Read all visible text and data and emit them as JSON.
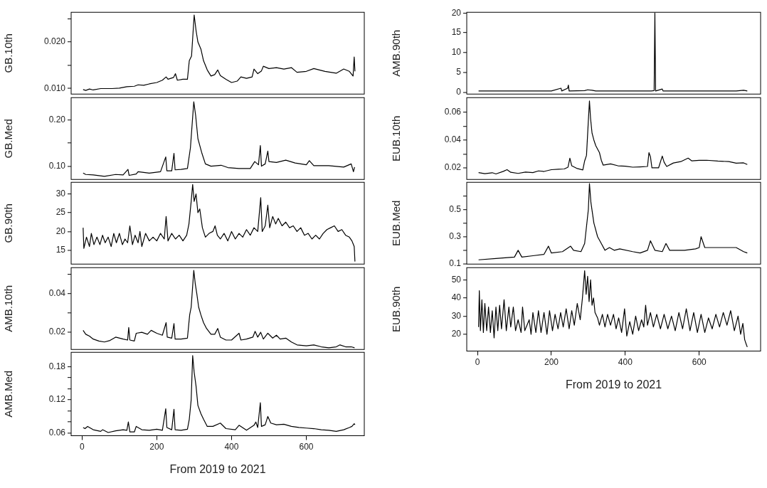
{
  "chart_data": [
    {
      "type": "line",
      "ylabel": "GB.10th",
      "color": "#000000",
      "xlim": [
        -29,
        755
      ],
      "ylim": [
        0.0088,
        0.0264
      ],
      "xticks": [
        0,
        200,
        400,
        600
      ],
      "yticks": [
        {
          "value": 0.01,
          "label": "0.010"
        },
        {
          "value": 0.015,
          "label": null
        },
        {
          "value": 0.02,
          "label": "0.020"
        },
        {
          "value": 0.025,
          "label": null
        }
      ],
      "tick_labels": "y",
      "x": [
        3,
        10,
        20,
        30,
        50,
        80,
        100,
        120,
        140,
        150,
        165,
        180,
        200,
        215,
        225,
        230,
        245,
        250,
        255,
        270,
        282,
        287,
        293,
        300,
        305,
        310,
        318,
        325,
        335,
        345,
        355,
        363,
        370,
        385,
        400,
        415,
        425,
        440,
        455,
        460,
        470,
        480,
        485,
        500,
        520,
        540,
        560,
        575,
        600,
        620,
        650,
        680,
        700,
        715,
        725,
        728,
        730
      ],
      "values": [
        0.0098,
        0.0096,
        0.0099,
        0.0097,
        0.01,
        0.01,
        0.0101,
        0.0104,
        0.0105,
        0.0108,
        0.0107,
        0.011,
        0.0113,
        0.0118,
        0.0125,
        0.012,
        0.0124,
        0.0132,
        0.0118,
        0.012,
        0.012,
        0.016,
        0.017,
        0.0258,
        0.0225,
        0.02,
        0.0185,
        0.016,
        0.014,
        0.0127,
        0.013,
        0.014,
        0.0128,
        0.012,
        0.0113,
        0.0116,
        0.0125,
        0.0122,
        0.0125,
        0.0142,
        0.0132,
        0.0138,
        0.0148,
        0.0143,
        0.0145,
        0.0142,
        0.0145,
        0.0135,
        0.0137,
        0.0143,
        0.0137,
        0.0133,
        0.0142,
        0.0137,
        0.0127,
        0.0168,
        0.0137
      ]
    },
    {
      "type": "line",
      "ylabel": "GB.Med",
      "color": "#000000",
      "xlim": [
        -29,
        755
      ],
      "ylim": [
        0.071,
        0.249
      ],
      "xticks": [
        0,
        200,
        400,
        600
      ],
      "yticks": [
        {
          "value": 0.1,
          "label": "0.10"
        },
        {
          "value": 0.15,
          "label": null
        },
        {
          "value": 0.2,
          "label": "0.20"
        }
      ],
      "tick_labels": "y",
      "x": [
        3,
        10,
        30,
        60,
        90,
        110,
        123,
        126,
        145,
        150,
        180,
        210,
        224,
        227,
        240,
        246,
        249,
        265,
        282,
        290,
        299,
        304,
        310,
        320,
        330,
        345,
        372,
        390,
        420,
        450,
        462,
        472,
        477,
        480,
        490,
        497,
        500,
        520,
        545,
        570,
        600,
        608,
        620,
        660,
        700,
        720,
        726,
        729
      ],
      "values": [
        0.085,
        0.082,
        0.081,
        0.078,
        0.082,
        0.081,
        0.093,
        0.08,
        0.083,
        0.088,
        0.085,
        0.088,
        0.12,
        0.09,
        0.09,
        0.128,
        0.092,
        0.093,
        0.095,
        0.14,
        0.24,
        0.21,
        0.16,
        0.13,
        0.105,
        0.1,
        0.102,
        0.097,
        0.095,
        0.095,
        0.11,
        0.103,
        0.145,
        0.1,
        0.105,
        0.133,
        0.11,
        0.108,
        0.113,
        0.107,
        0.103,
        0.112,
        0.101,
        0.101,
        0.098,
        0.105,
        0.088,
        0.098
      ]
    },
    {
      "type": "line",
      "ylabel": "GB.90th",
      "color": "#000000",
      "xlim": [
        -29,
        755
      ],
      "ylim": [
        11.3,
        33.1
      ],
      "xticks": [
        0,
        200,
        400,
        600
      ],
      "yticks": [
        15,
        20,
        25,
        30
      ],
      "tick_labels": "y",
      "x": [
        3,
        5,
        12,
        20,
        25,
        32,
        40,
        48,
        55,
        62,
        70,
        78,
        85,
        92,
        100,
        108,
        115,
        122,
        128,
        135,
        142,
        150,
        155,
        160,
        170,
        180,
        190,
        200,
        210,
        220,
        225,
        230,
        240,
        250,
        260,
        270,
        280,
        286,
        292,
        296,
        300,
        305,
        310,
        315,
        322,
        330,
        340,
        350,
        356,
        362,
        370,
        380,
        390,
        400,
        410,
        420,
        430,
        440,
        450,
        460,
        470,
        478,
        482,
        490,
        497,
        502,
        510,
        518,
        525,
        535,
        545,
        555,
        565,
        575,
        585,
        595,
        605,
        615,
        625,
        635,
        645,
        655,
        665,
        675,
        685,
        695,
        705,
        715,
        722,
        728,
        730
      ],
      "values": [
        21,
        15.5,
        18.5,
        16,
        19.5,
        16.5,
        18.5,
        16.5,
        19,
        17,
        18.5,
        16,
        19.5,
        17,
        19.5,
        16.5,
        18,
        17,
        21.5,
        16.5,
        19,
        17,
        20,
        16,
        19.5,
        17.5,
        18.5,
        17.5,
        19.5,
        18,
        24,
        17.5,
        19.5,
        18,
        19,
        17.5,
        19,
        22,
        28,
        32.5,
        28,
        30,
        25,
        26,
        21,
        18.5,
        19.5,
        20,
        21.5,
        19,
        18,
        19.5,
        17.5,
        20,
        18,
        19.5,
        18.5,
        20.5,
        19,
        21,
        20,
        29,
        20,
        21.5,
        27,
        21,
        24,
        22,
        23.5,
        21.5,
        22.5,
        21,
        21.5,
        20,
        21,
        19,
        19.5,
        18,
        19,
        18,
        19.5,
        20.5,
        21,
        21.5,
        20,
        20.5,
        19,
        18.5,
        17.5,
        16,
        12
      ]
    },
    {
      "type": "line",
      "ylabel": "AMB.10th",
      "color": "#000000",
      "xlim": [
        -29,
        755
      ],
      "ylim": [
        0.0111,
        0.0534
      ],
      "xticks": [
        0,
        200,
        400,
        600
      ],
      "yticks": [
        {
          "value": 0.02,
          "label": "0.02"
        },
        {
          "value": 0.03,
          "label": null
        },
        {
          "value": 0.04,
          "label": "0.04"
        },
        {
          "value": 0.05,
          "label": null
        }
      ],
      "tick_labels": "y",
      "x": [
        3,
        10,
        20,
        30,
        45,
        60,
        75,
        90,
        110,
        122,
        125,
        128,
        140,
        145,
        160,
        175,
        185,
        200,
        215,
        225,
        228,
        240,
        246,
        249,
        265,
        282,
        288,
        292,
        299,
        303,
        307,
        312,
        318,
        325,
        333,
        345,
        355,
        363,
        370,
        385,
        400,
        420,
        425,
        440,
        457,
        463,
        470,
        478,
        485,
        497,
        510,
        520,
        530,
        545,
        560,
        575,
        600,
        620,
        640,
        660,
        680,
        690,
        705,
        720,
        729
      ],
      "values": [
        0.021,
        0.019,
        0.018,
        0.0165,
        0.0155,
        0.015,
        0.0158,
        0.0175,
        0.0165,
        0.016,
        0.0225,
        0.016,
        0.0155,
        0.0195,
        0.02,
        0.019,
        0.021,
        0.0195,
        0.0185,
        0.025,
        0.0175,
        0.017,
        0.0245,
        0.0165,
        0.0165,
        0.017,
        0.029,
        0.033,
        0.052,
        0.045,
        0.04,
        0.033,
        0.029,
        0.025,
        0.022,
        0.019,
        0.019,
        0.022,
        0.0175,
        0.016,
        0.016,
        0.0195,
        0.016,
        0.0165,
        0.0175,
        0.0205,
        0.0175,
        0.02,
        0.0165,
        0.0195,
        0.017,
        0.0185,
        0.0165,
        0.017,
        0.015,
        0.0135,
        0.013,
        0.0135,
        0.0125,
        0.012,
        0.0125,
        0.0135,
        0.0125,
        0.0125,
        0.012
      ]
    },
    {
      "type": "line",
      "ylabel": "AMB.Med",
      "xlabel": "From 2019 to 2021",
      "color": "#000000",
      "xlim": [
        -29,
        755
      ],
      "ylim": [
        0.0553,
        0.206
      ],
      "xticks": [
        0,
        200,
        400,
        600
      ],
      "yticks": [
        {
          "value": 0.06,
          "label": "0.06"
        },
        {
          "value": 0.08,
          "label": null
        },
        {
          "value": 0.1,
          "label": null
        },
        {
          "value": 0.12,
          "label": "0.12"
        },
        {
          "value": 0.14,
          "label": null
        },
        {
          "value": 0.16,
          "label": null
        },
        {
          "value": 0.18,
          "label": "0.18"
        }
      ],
      "x": [
        3,
        8,
        15,
        30,
        50,
        55,
        70,
        90,
        110,
        120,
        124,
        128,
        140,
        145,
        160,
        180,
        200,
        215,
        224,
        227,
        240,
        246,
        249,
        265,
        282,
        287,
        292,
        296,
        300,
        305,
        310,
        318,
        325,
        335,
        350,
        370,
        385,
        410,
        420,
        440,
        460,
        465,
        470,
        477,
        480,
        490,
        497,
        505,
        520,
        540,
        560,
        580,
        600,
        620,
        640,
        660,
        680,
        700,
        715,
        722,
        728,
        730
      ],
      "values": [
        0.07,
        0.068,
        0.072,
        0.066,
        0.063,
        0.066,
        0.061,
        0.064,
        0.066,
        0.065,
        0.08,
        0.062,
        0.062,
        0.072,
        0.066,
        0.065,
        0.067,
        0.065,
        0.104,
        0.07,
        0.066,
        0.103,
        0.066,
        0.065,
        0.067,
        0.085,
        0.12,
        0.2,
        0.17,
        0.145,
        0.11,
        0.095,
        0.085,
        0.072,
        0.072,
        0.078,
        0.068,
        0.066,
        0.074,
        0.065,
        0.074,
        0.08,
        0.07,
        0.115,
        0.072,
        0.075,
        0.09,
        0.078,
        0.075,
        0.076,
        0.072,
        0.07,
        0.069,
        0.068,
        0.066,
        0.065,
        0.063,
        0.066,
        0.07,
        0.072,
        0.077,
        0.075
      ]
    },
    {
      "type": "line",
      "ylabel": "AMB.90th",
      "color": "#000000",
      "xlim": [
        -29,
        766
      ],
      "ylim": [
        -0.5,
        20.2
      ],
      "xticks": [
        0,
        200,
        400,
        600
      ],
      "yticks": [
        0,
        5,
        10,
        15,
        20
      ],
      "tick_labels": "y",
      "x": [
        3,
        50,
        100,
        150,
        200,
        226,
        228,
        244,
        246,
        248,
        290,
        298,
        310,
        320,
        400,
        470,
        478,
        480,
        482,
        500,
        502,
        520,
        600,
        700,
        720,
        730
      ],
      "values": [
        0.3,
        0.3,
        0.3,
        0.3,
        0.3,
        1.0,
        0.3,
        1.0,
        1.8,
        0.3,
        0.4,
        0.6,
        0.5,
        0.3,
        0.3,
        0.3,
        0.4,
        20,
        0.3,
        0.8,
        0.3,
        0.3,
        0.3,
        0.3,
        0.5,
        0.3
      ]
    },
    {
      "type": "line",
      "ylabel": "EUB.10th",
      "color": "#000000",
      "xlim": [
        -29,
        766
      ],
      "ylim": [
        0.0116,
        0.0706
      ],
      "xticks": [
        0,
        200,
        400,
        600
      ],
      "yticks": [
        {
          "value": 0.02,
          "label": "0.02"
        },
        {
          "value": 0.03,
          "label": null
        },
        {
          "value": 0.04,
          "label": "0.04"
        },
        {
          "value": 0.05,
          "label": null
        },
        {
          "value": 0.06,
          "label": "0.06"
        }
      ],
      "tick_labels": "y",
      "x": [
        3,
        20,
        40,
        50,
        70,
        80,
        90,
        110,
        130,
        150,
        165,
        180,
        200,
        220,
        235,
        245,
        250,
        255,
        270,
        285,
        290,
        295,
        300,
        303,
        306,
        310,
        315,
        320,
        330,
        335,
        340,
        360,
        380,
        400,
        420,
        440,
        460,
        464,
        468,
        472,
        490,
        500,
        505,
        512,
        530,
        550,
        570,
        580,
        600,
        620,
        650,
        680,
        700,
        720,
        730
      ],
      "values": [
        0.0166,
        0.0158,
        0.0165,
        0.0156,
        0.0175,
        0.0187,
        0.0168,
        0.016,
        0.017,
        0.0166,
        0.0178,
        0.0174,
        0.0187,
        0.019,
        0.0192,
        0.0205,
        0.027,
        0.0215,
        0.0195,
        0.0185,
        0.025,
        0.029,
        0.054,
        0.0682,
        0.0556,
        0.045,
        0.04,
        0.036,
        0.031,
        0.0255,
        0.022,
        0.0229,
        0.0215,
        0.0212,
        0.0205,
        0.0207,
        0.021,
        0.031,
        0.028,
        0.02,
        0.02,
        0.0285,
        0.024,
        0.021,
        0.0235,
        0.0245,
        0.027,
        0.025,
        0.0254,
        0.0255,
        0.0249,
        0.0245,
        0.0234,
        0.0236,
        0.0224
      ]
    },
    {
      "type": "line",
      "ylabel": "EUB.Med",
      "color": "#000000",
      "xlim": [
        -29,
        766
      ],
      "ylim": [
        0.098,
        0.7
      ],
      "xticks": [
        0,
        200,
        400,
        600
      ],
      "yticks": [
        0.1,
        {
          "value": 0.2,
          "label": null
        },
        0.3,
        {
          "value": 0.4,
          "label": null
        },
        0.5,
        {
          "value": 0.6,
          "label": null
        }
      ],
      "tick_labels": "y",
      "x": [
        3,
        50,
        100,
        110,
        120,
        150,
        180,
        192,
        200,
        230,
        252,
        260,
        280,
        290,
        300,
        303,
        307,
        315,
        325,
        335,
        345,
        357,
        370,
        385,
        420,
        440,
        460,
        468,
        480,
        500,
        510,
        520,
        560,
        590,
        600,
        605,
        615,
        650,
        680,
        700,
        720,
        730
      ],
      "values": [
        0.13,
        0.14,
        0.15,
        0.2,
        0.15,
        0.16,
        0.17,
        0.23,
        0.18,
        0.19,
        0.23,
        0.2,
        0.19,
        0.25,
        0.5,
        0.69,
        0.55,
        0.4,
        0.3,
        0.25,
        0.2,
        0.22,
        0.2,
        0.21,
        0.19,
        0.18,
        0.2,
        0.27,
        0.2,
        0.19,
        0.25,
        0.2,
        0.2,
        0.21,
        0.22,
        0.3,
        0.22,
        0.22,
        0.22,
        0.22,
        0.19,
        0.18
      ]
    },
    {
      "type": "line",
      "ylabel": "EUB.90th",
      "xlabel": "From 2019 to 2021",
      "color": "#000000",
      "xlim": [
        -29,
        766
      ],
      "ylim": [
        10.8,
        56.7
      ],
      "xticks": [
        0,
        200,
        400,
        600
      ],
      "yticks": [
        20,
        30,
        40,
        50
      ],
      "x": [
        3,
        5,
        8,
        12,
        16,
        20,
        25,
        30,
        35,
        40,
        45,
        50,
        55,
        60,
        65,
        72,
        78,
        85,
        90,
        97,
        103,
        110,
        118,
        122,
        128,
        140,
        145,
        150,
        158,
        165,
        172,
        180,
        188,
        195,
        203,
        210,
        218,
        225,
        232,
        240,
        248,
        255,
        262,
        270,
        278,
        284,
        290,
        294,
        298,
        302,
        306,
        310,
        314,
        318,
        325,
        330,
        338,
        345,
        352,
        360,
        368,
        375,
        382,
        390,
        398,
        404,
        412,
        420,
        428,
        436,
        444,
        450,
        455,
        460,
        468,
        476,
        485,
        495,
        505,
        515,
        525,
        535,
        545,
        555,
        565,
        575,
        585,
        595,
        605,
        615,
        625,
        635,
        645,
        655,
        665,
        675,
        685,
        695,
        705,
        712,
        718,
        723,
        728,
        730
      ],
      "values": [
        24,
        44,
        22,
        39,
        21,
        37,
        22,
        35,
        21,
        33,
        18,
        35,
        22,
        36,
        23,
        39,
        22,
        35,
        24,
        35,
        22,
        28,
        21,
        35,
        22,
        28,
        20,
        32,
        21,
        33,
        21,
        32,
        20,
        33,
        22,
        31,
        23,
        32,
        24,
        34,
        23,
        33,
        25,
        37,
        28,
        40,
        55,
        42,
        52,
        38,
        50,
        36,
        40,
        32,
        29,
        25,
        31,
        24,
        31,
        25,
        31,
        23,
        29,
        21,
        34,
        19,
        27,
        20,
        30,
        22,
        28,
        24,
        36,
        25,
        32,
        24,
        31,
        23,
        31,
        23,
        30,
        22,
        32,
        23,
        34,
        22,
        32,
        21,
        31,
        21,
        29,
        23,
        31,
        24,
        32,
        25,
        33,
        22,
        30,
        20,
        26,
        17,
        14,
        13
      ]
    }
  ]
}
